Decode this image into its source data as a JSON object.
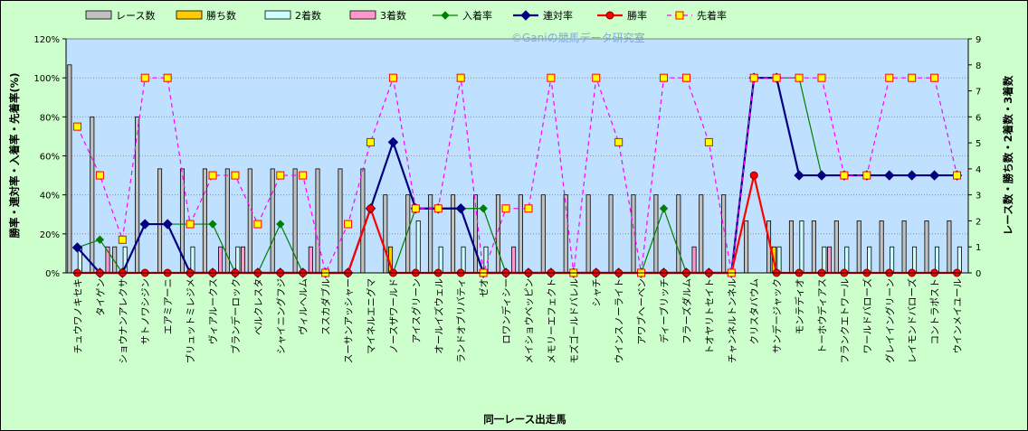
{
  "chart_data": {
    "type": "bar",
    "watermark": "©Ganiの競馬データ研究室",
    "xlabel": "同一レース出走馬",
    "ylabel_left": "勝率・連対率・入着率・先着率(%)",
    "ylabel_right": "レース数・勝ち数・2着数・3着数",
    "ylim_left": [
      0,
      120
    ],
    "ylim_right": [
      0,
      9
    ],
    "left_ticks": [
      "0%",
      "20%",
      "40%",
      "60%",
      "80%",
      "100%",
      "120%"
    ],
    "right_ticks": [
      "0",
      "1",
      "2",
      "3",
      "4",
      "5",
      "6",
      "7",
      "8",
      "9"
    ],
    "grid": true,
    "legend_position": "top",
    "categories": [
      "チュウワノキセキ",
      "タイゲン",
      "ショウナンアレクサ",
      "サトノワシジン",
      "エアミアーニ",
      "ブリュットミレジメ",
      "ヴィアルークス",
      "ブランデーロック",
      "ベルクレスタ",
      "シャイニングフジ",
      "ヴィルヘルム",
      "ススカダブル",
      "スーサンアッシャー",
      "マイネルエニグマ",
      "ノースザワールド",
      "アイスグリーン",
      "オールイズウェル",
      "ランドオブリバティ",
      "ゼオ",
      "ロワンディシー",
      "メイショウベッピン",
      "メモリーエフェクト",
      "モズゴールドバレル",
      "シャチ",
      "ウインスノーライト",
      "アワブヘーベン",
      "ディーブリッチ",
      "フラーズダルム",
      "トオヤリトセイト",
      "チャンネルトンネル",
      "クリスタバウム",
      "サンデージャック",
      "モンテディオ",
      "トーホウディアス",
      "フランクエトワール",
      "ワールドバローズ",
      "グレイイングリーン",
      "レイモンドバローズ",
      "コントラポスト",
      "ウインメイユール"
    ],
    "series": [
      {
        "name": "レース数",
        "color": "#C0C0C0",
        "values": [
          8,
          6,
          1,
          6,
          4,
          4,
          4,
          4,
          4,
          4,
          4,
          4,
          4,
          4,
          3,
          3,
          3,
          3,
          3,
          3,
          3,
          3,
          3,
          3,
          3,
          3,
          3,
          3,
          3,
          3,
          2,
          2,
          2,
          2,
          2,
          2,
          2,
          2,
          2,
          2
        ]
      },
      {
        "name": "勝ち数",
        "color": "#FFCC00",
        "values": [
          0,
          0,
          0,
          0,
          0,
          0,
          0,
          0,
          0,
          0,
          0,
          0,
          0,
          0,
          1,
          0,
          0,
          0,
          0,
          0,
          0,
          0,
          0,
          0,
          0,
          0,
          0,
          0,
          0,
          0,
          0,
          1,
          0,
          0,
          0,
          0,
          0,
          0,
          0,
          0
        ]
      },
      {
        "name": "2着数",
        "color": "#CCFFFF",
        "values": [
          1,
          0,
          1,
          0,
          0,
          1,
          0,
          1,
          0,
          0,
          0,
          0,
          0,
          0,
          0,
          2,
          1,
          1,
          1,
          0,
          0,
          0,
          0,
          0,
          0,
          0,
          0,
          0,
          0,
          0,
          0,
          1,
          2,
          1,
          1,
          1,
          1,
          1,
          1,
          1
        ]
      },
      {
        "name": "3着数",
        "color": "#FF99CC",
        "values": [
          0,
          1,
          0,
          0,
          0,
          0,
          1,
          1,
          0,
          0,
          1,
          0,
          0,
          0,
          0,
          0,
          0,
          0,
          0,
          1,
          0,
          0,
          0,
          0,
          0,
          0,
          0,
          1,
          0,
          0,
          0,
          0,
          0,
          1,
          0,
          0,
          0,
          0,
          0,
          0
        ]
      },
      {
        "name": "入着率",
        "color": "#008000",
        "values": [
          13,
          17,
          0,
          25,
          25,
          25,
          25,
          0,
          0,
          25,
          0,
          0,
          0,
          33,
          0,
          33,
          33,
          33,
          33,
          0,
          0,
          0,
          0,
          0,
          0,
          0,
          33,
          0,
          0,
          0,
          100,
          100,
          100,
          50,
          50,
          50,
          50,
          50,
          50,
          50
        ]
      },
      {
        "name": "連対率",
        "color": "#000080",
        "values": [
          13,
          0,
          0,
          25,
          25,
          0,
          0,
          0,
          0,
          0,
          0,
          0,
          0,
          33,
          67,
          33,
          33,
          33,
          0,
          0,
          0,
          0,
          0,
          0,
          0,
          0,
          0,
          0,
          0,
          0,
          100,
          100,
          50,
          50,
          50,
          50,
          50,
          50,
          50,
          50
        ]
      },
      {
        "name": "勝率",
        "color": "#FF0000",
        "values": [
          0,
          0,
          0,
          0,
          0,
          0,
          0,
          0,
          0,
          0,
          0,
          0,
          0,
          33,
          0,
          0,
          0,
          0,
          0,
          0,
          0,
          0,
          0,
          0,
          0,
          0,
          0,
          0,
          0,
          0,
          50,
          0,
          0,
          0,
          0,
          0,
          0,
          0,
          0,
          0
        ]
      },
      {
        "name": "先着率",
        "color": "#FF00FF",
        "values": [
          75,
          50,
          17,
          100,
          100,
          25,
          50,
          50,
          25,
          50,
          50,
          0,
          25,
          67,
          100,
          33,
          33,
          100,
          0,
          33,
          33,
          100,
          0,
          100,
          67,
          0,
          100,
          100,
          67,
          0,
          100,
          100,
          100,
          100,
          50,
          50,
          100,
          100,
          100,
          50
        ]
      }
    ]
  }
}
